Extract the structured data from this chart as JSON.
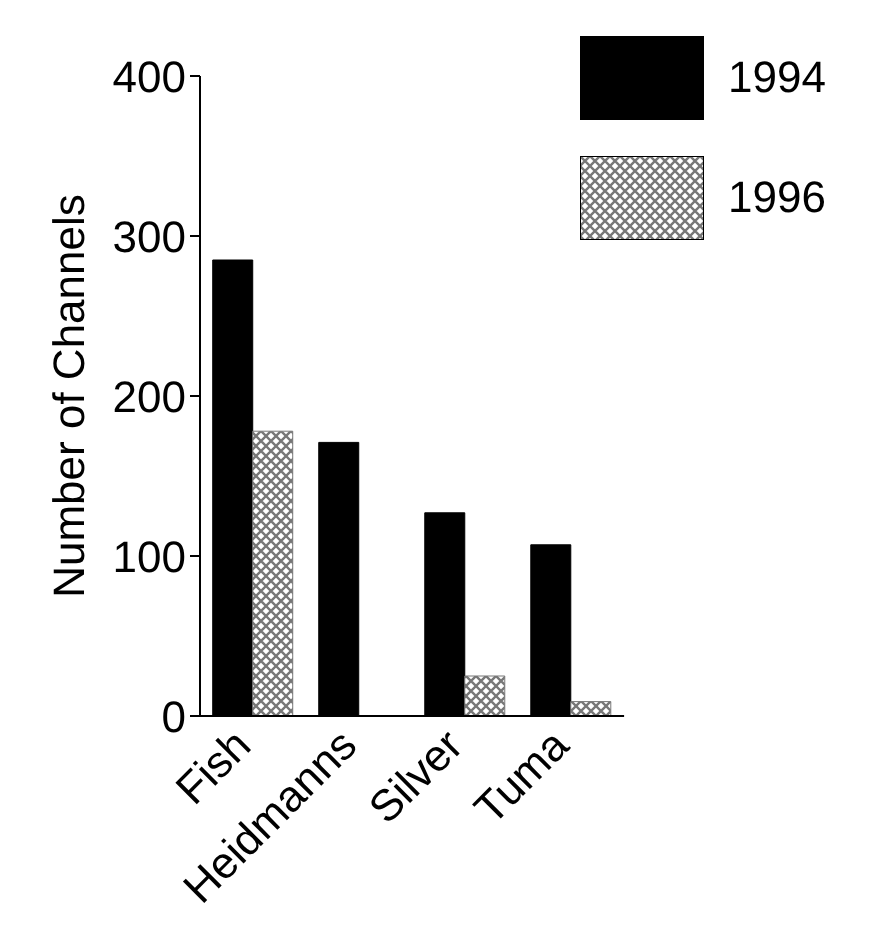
{
  "chart_data": {
    "type": "bar",
    "ylabel": "Number of Channels",
    "categories": [
      "Fish",
      "Heidmanns",
      "Silver",
      "Tuma"
    ],
    "series": [
      {
        "name": "1994",
        "color": "#000000",
        "values": [
          285,
          171,
          127,
          107
        ]
      },
      {
        "name": "1996",
        "color": "#777777",
        "values": [
          178,
          0,
          25,
          9
        ]
      }
    ],
    "ylim": [
      0,
      400
    ],
    "yticks": [
      0,
      100,
      200,
      300,
      400
    ],
    "grid": false,
    "legend": "top right"
  }
}
